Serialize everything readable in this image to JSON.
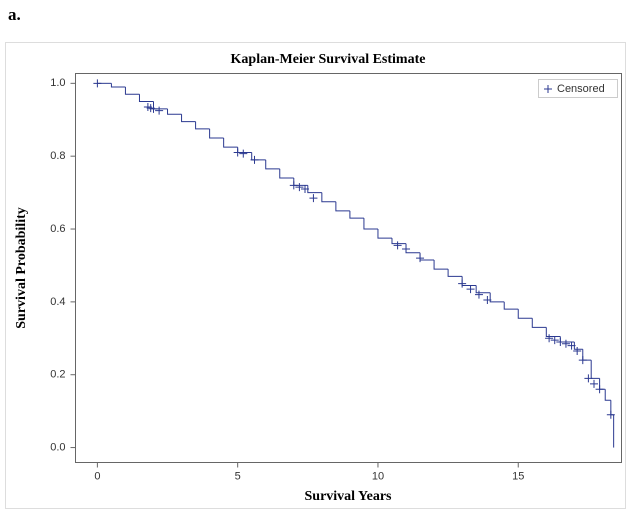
{
  "panel_label": "a.",
  "chart_data": {
    "type": "line",
    "drawstyle": "steps-post",
    "title": "Kaplan-Meier Survival Estimate",
    "x_label": "Survival Years",
    "y_label": "Survival Probability",
    "color": "#2b3990",
    "x": [
      0,
      0.5,
      1,
      1.5,
      2,
      2.5,
      3,
      3.5,
      4,
      4.5,
      5,
      5.5,
      6,
      6.5,
      7,
      7.5,
      8,
      8.5,
      9,
      9.5,
      10,
      10.5,
      11,
      11.5,
      12,
      12.5,
      13,
      13.5,
      14,
      14.5,
      15,
      15.5,
      16,
      16.5,
      17,
      17.3,
      17.6,
      17.9,
      18.1,
      18.3,
      18.4
    ],
    "values": [
      1.0,
      0.99,
      0.97,
      0.95,
      0.93,
      0.915,
      0.895,
      0.875,
      0.85,
      0.825,
      0.81,
      0.79,
      0.765,
      0.74,
      0.72,
      0.7,
      0.675,
      0.65,
      0.63,
      0.6,
      0.575,
      0.56,
      0.535,
      0.515,
      0.49,
      0.47,
      0.445,
      0.425,
      0.4,
      0.38,
      0.355,
      0.33,
      0.305,
      0.29,
      0.27,
      0.24,
      0.19,
      0.16,
      0.13,
      0.09,
      0.0
    ],
    "censored": {
      "name": "Censored",
      "marker": "+",
      "x": [
        0,
        1.8,
        1.9,
        2.0,
        2.2,
        5,
        5.2,
        5.6,
        7,
        7.2,
        7.4,
        7.7,
        10.7,
        11,
        11.5,
        13,
        13.3,
        13.6,
        13.9,
        16.1,
        16.3,
        16.5,
        16.7,
        16.9,
        17.1,
        17.3,
        17.5,
        17.7,
        17.9,
        18.3
      ],
      "values": [
        1.0,
        0.935,
        0.932,
        0.93,
        0.925,
        0.81,
        0.807,
        0.79,
        0.72,
        0.715,
        0.71,
        0.685,
        0.555,
        0.545,
        0.52,
        0.45,
        0.435,
        0.42,
        0.405,
        0.3,
        0.295,
        0.29,
        0.285,
        0.28,
        0.265,
        0.24,
        0.19,
        0.175,
        0.16,
        0.09
      ]
    },
    "xlim": [
      -0.78,
      18.68
    ],
    "ylim": [
      -0.041,
      1.027
    ],
    "xticks": [
      0,
      5,
      10,
      15
    ],
    "yticks": [
      {
        "value": 0.0,
        "label": "0.0"
      },
      0.2,
      0.4,
      0.6,
      0.8,
      {
        "value": 1.0,
        "label": "1.0"
      }
    ],
    "legend": "upper right",
    "grid": false
  }
}
